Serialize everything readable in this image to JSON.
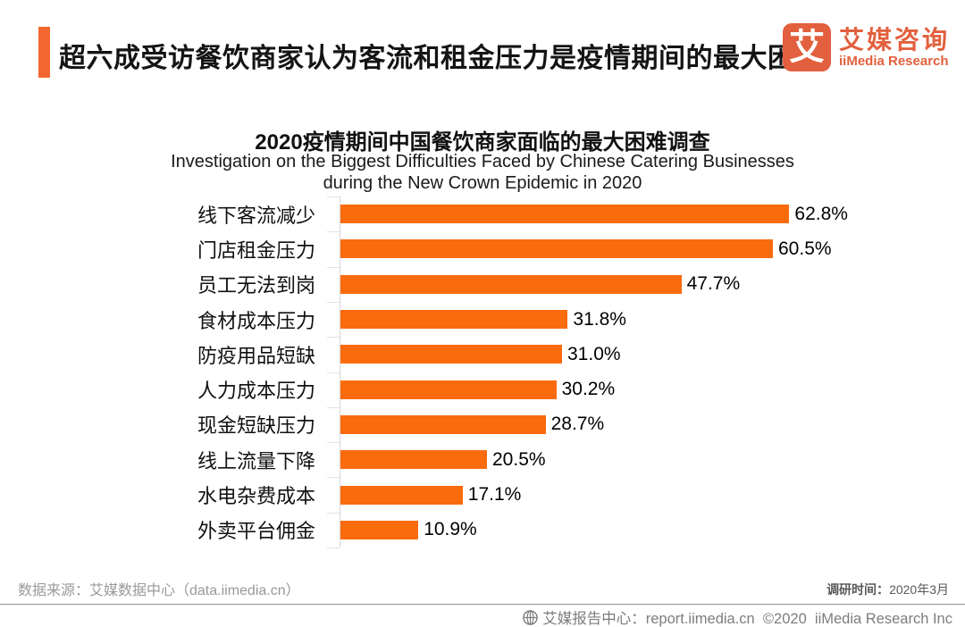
{
  "header": {
    "title": "超六成受访餐饮商家认为客流和租金压力是疫情期间的最大困难",
    "logo": {
      "glyph": "艾",
      "name_cn": "艾媒咨询",
      "name_en": "iiMedia Research"
    }
  },
  "chart_data": {
    "type": "bar",
    "orientation": "horizontal",
    "title": "2020疫情期间中国餐饮商家面临的最大困难调查",
    "subtitle_line1": "Investigation on the Biggest Difficulties Faced by Chinese Catering Businesses",
    "subtitle_line2": "during the New Crown Epidemic in 2020",
    "categories": [
      "线下客流减少",
      "门店租金压力",
      "员工无法到岗",
      "食材成本压力",
      "防疫用品短缺",
      "人力成本压力",
      "现金短缺压力",
      "线上流量下降",
      "水电杂费成本",
      "外卖平台佣金"
    ],
    "values": [
      62.8,
      60.5,
      47.7,
      31.8,
      31.0,
      30.2,
      28.7,
      20.5,
      17.1,
      10.9
    ],
    "value_labels": [
      "62.8%",
      "60.5%",
      "47.7%",
      "31.8%",
      "31.0%",
      "30.2%",
      "28.7%",
      "20.5%",
      "17.1%",
      "10.9%"
    ],
    "xlim": [
      0,
      80
    ],
    "xlabel": "",
    "ylabel": "",
    "grid": false,
    "legend": "none",
    "bar_color": "#F96B0C"
  },
  "footer": {
    "source": "数据来源：艾媒数据中心（data.iimedia.cn）",
    "survey_time_label": "调研时间：",
    "survey_time_value": "2020年3月",
    "bottom_bar_text": "艾媒报告中心：report.iimedia.cn  ©2020  iiMedia Research Inc"
  },
  "colors": {
    "bar": "#F96B0C",
    "accent_bar": "#F4662F",
    "logo": "#E2603E"
  }
}
